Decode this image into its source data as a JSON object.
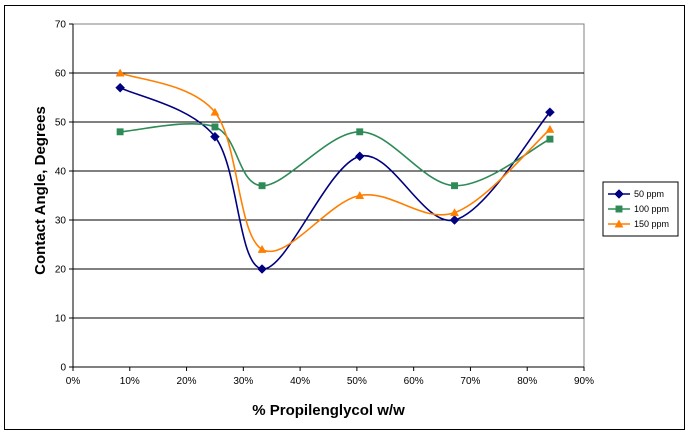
{
  "chart_data": {
    "type": "line",
    "title": "",
    "xlabel": "% Propilenglycol w/w",
    "ylabel": "Contact Angle, Degrees",
    "xlim": [
      0,
      90
    ],
    "ylim": [
      0,
      70
    ],
    "x_ticks": [
      0,
      10,
      20,
      30,
      40,
      50,
      60,
      70,
      80,
      90
    ],
    "x_tick_labels": [
      "0%",
      "10%",
      "20%",
      "30%",
      "40%",
      "50%",
      "60%",
      "70%",
      "80%",
      "90%"
    ],
    "y_ticks": [
      0,
      10,
      20,
      30,
      40,
      50,
      60,
      70
    ],
    "y_tick_labels": [
      "0",
      "10",
      "20",
      "30",
      "40",
      "50",
      "60",
      "70"
    ],
    "grid": "horizontal",
    "smooth": true,
    "legend_position": "right",
    "series": [
      {
        "name": "50 ppm",
        "color": "#000080",
        "marker": "diamond",
        "x": [
          8.3,
          25,
          33.3,
          50.5,
          67.2,
          84
        ],
        "y": [
          57,
          47,
          20,
          43,
          30,
          52
        ]
      },
      {
        "name": "100 ppm",
        "color": "#2e8b57",
        "marker": "square",
        "x": [
          8.3,
          25,
          33.3,
          50.5,
          67.2,
          84
        ],
        "y": [
          48,
          49,
          37,
          48,
          37,
          46.5
        ]
      },
      {
        "name": "150 ppm",
        "color": "#ff7f00",
        "marker": "triangle",
        "x": [
          8.3,
          25,
          33.3,
          50.5,
          67.2,
          84
        ],
        "y": [
          60,
          52,
          24,
          35,
          31.5,
          48.5
        ]
      }
    ]
  }
}
